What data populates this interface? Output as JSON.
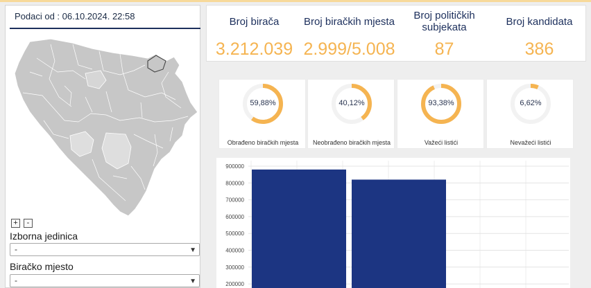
{
  "header": {
    "data_date": "Podaci od : 06.10.2024. 22:58"
  },
  "map": {
    "zoom_in_label": "+",
    "zoom_out_label": "-"
  },
  "filters": {
    "electoral_unit": {
      "label": "Izborna jedinica",
      "value": "-"
    },
    "polling_station": {
      "label": "Biračko mjesto",
      "value": "-"
    }
  },
  "stats": [
    {
      "label": "Broj birača",
      "value": "3.212.039"
    },
    {
      "label": "Broj biračkih mjesta",
      "value": "2.999/5.008"
    },
    {
      "label": "Broj političkih subjekata",
      "value": "87"
    },
    {
      "label": "Broj kandidata",
      "value": "386"
    }
  ],
  "donuts": [
    {
      "percent_label": "59,88%",
      "caption": "Obrađeno biračkih mjesta",
      "fraction": 0.5988
    },
    {
      "percent_label": "40,12%",
      "caption": "Neobrađeno biračkih mjesta",
      "fraction": 0.4012
    },
    {
      "percent_label": "93,38%",
      "caption": "Važeći listići",
      "fraction": 0.9338
    },
    {
      "percent_label": "6,62%",
      "caption": "Nevažeći listići",
      "fraction": 0.0662
    }
  ],
  "colors": {
    "accent": "#f5b451",
    "navy": "#1c2f5c",
    "bar": "#1c3582",
    "map_region": "#c7c7c7",
    "map_highlight": "#dedede",
    "donut_track": "#f2f2f2"
  },
  "chart_data": {
    "type": "bar",
    "categories": [
      "",
      ""
    ],
    "values": [
      880000,
      820000
    ],
    "yticks": [
      "900000",
      "800000",
      "700000",
      "600000",
      "500000",
      "400000",
      "300000",
      "200000"
    ],
    "ylim": [
      200000,
      900000
    ]
  }
}
